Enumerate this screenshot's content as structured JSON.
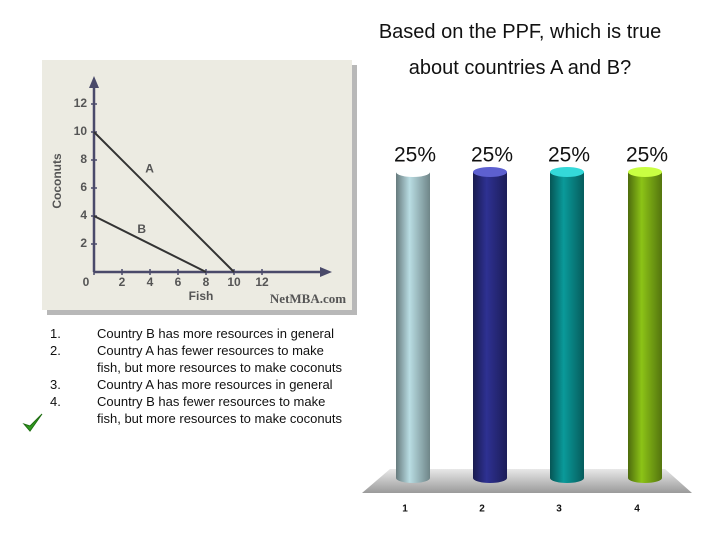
{
  "slide": {
    "title": "Based on the PPF, which is true about countries A and B?",
    "options": [
      {
        "number": "1.",
        "text": "Country B has more resources in general"
      },
      {
        "number": "2.",
        "text": "Country A has fewer resources to make fish, but more resources to make coconuts"
      },
      {
        "number": "3.",
        "text": "Country A has more resources in general"
      },
      {
        "number": "4.",
        "text": "Country B has fewer resources to make fish, but more resources to make coconuts"
      }
    ]
  },
  "chart_data": [
    {
      "type": "line",
      "xlabel": "Fish",
      "ylabel": "Coconuts",
      "watermark": "NetMBA.com",
      "xlim": [
        0,
        17
      ],
      "ylim": [
        0,
        14
      ],
      "xticks": [
        0,
        2,
        4,
        6,
        8,
        10,
        12
      ],
      "yticks": [
        2,
        4,
        6,
        8,
        10,
        12
      ],
      "series": [
        {
          "name": "A",
          "color": "#333333",
          "x": [
            0,
            10
          ],
          "values": [
            10,
            0
          ]
        },
        {
          "name": "B",
          "color": "#333333",
          "x": [
            0,
            8
          ],
          "values": [
            4,
            0
          ]
        }
      ]
    },
    {
      "type": "bar",
      "categories": [
        "1",
        "2",
        "3",
        "4"
      ],
      "values": [
        25,
        25,
        25,
        25
      ],
      "value_labels": [
        "25%",
        "25%",
        "25%",
        "25%"
      ],
      "colors": [
        "#b9dde3",
        "#2e3192",
        "#0a9a9a",
        "#8cc317"
      ]
    }
  ]
}
